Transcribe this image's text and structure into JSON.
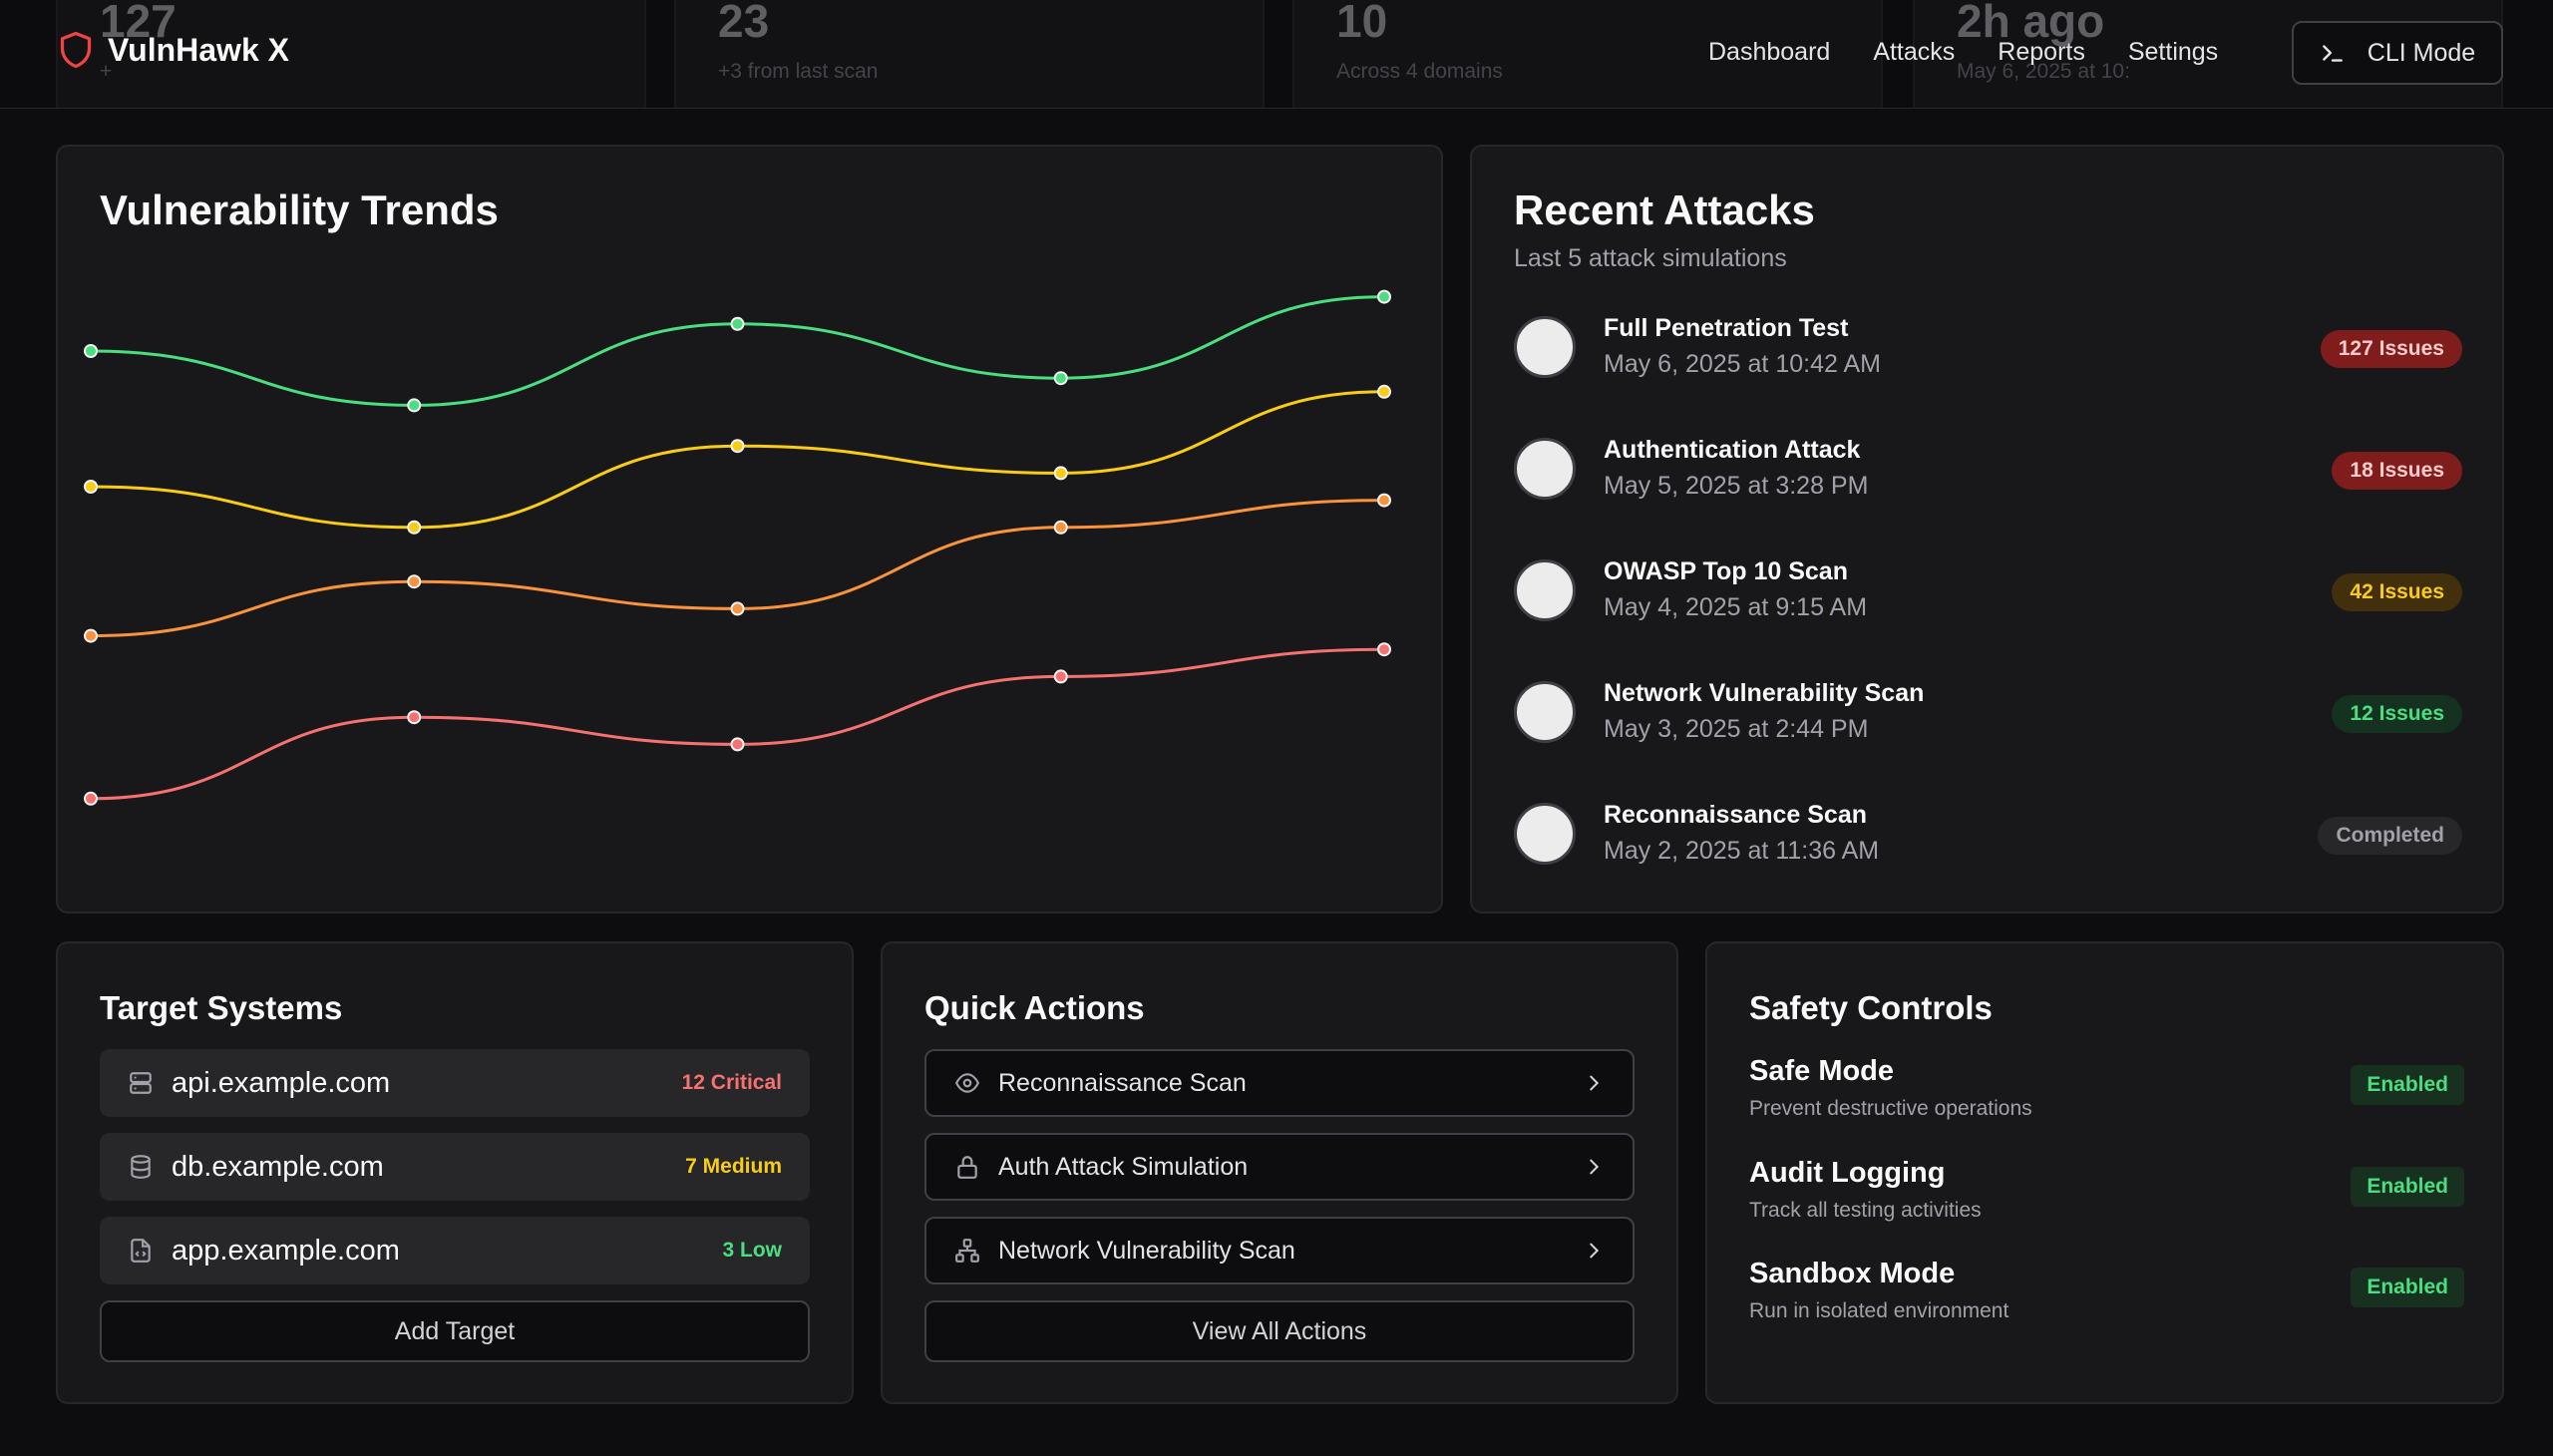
{
  "header": {
    "brand": "VulnHawk X",
    "nav": [
      "Dashboard",
      "Attacks",
      "Reports",
      "Settings"
    ],
    "cli_button": "CLI Mode",
    "behind_stats": [
      {
        "value": "127",
        "sub": "+"
      },
      {
        "value": "23",
        "sub": "+3 from last scan"
      },
      {
        "value": "10",
        "sub": "Across 4 domains"
      },
      {
        "value": "2h ago",
        "sub": "May 6, 2025 at 10:"
      }
    ]
  },
  "trends": {
    "title": "Vulnerability Trends"
  },
  "chart_data": {
    "type": "line",
    "title": "Vulnerability Trends",
    "x": [
      1,
      2,
      3,
      4,
      5
    ],
    "ylim": [
      0,
      100
    ],
    "grid": false,
    "legend": "none",
    "series": [
      {
        "color": "#4ade80",
        "values": [
          75,
          71,
          77,
          73,
          79
        ]
      },
      {
        "color": "#facc15",
        "values": [
          65,
          62,
          68,
          66,
          72
        ]
      },
      {
        "color": "#fb923c",
        "values": [
          54,
          58,
          56,
          62,
          64
        ]
      },
      {
        "color": "#f87171",
        "values": [
          42,
          48,
          46,
          51,
          53
        ]
      }
    ]
  },
  "recent_attacks": {
    "title": "Recent Attacks",
    "subtitle": "Last 5 attack simulations",
    "items": [
      {
        "name": "Full Penetration Test",
        "date": "May 6, 2025 at 10:42 AM",
        "badge": "127 Issues",
        "badge_bg": "#7f1d1d",
        "badge_fg": "#fecaca"
      },
      {
        "name": "Authentication Attack",
        "date": "May 5, 2025 at 3:28 PM",
        "badge": "18 Issues",
        "badge_bg": "#7f1d1d",
        "badge_fg": "#fecaca"
      },
      {
        "name": "OWASP Top 10 Scan",
        "date": "May 4, 2025 at 9:15 AM",
        "badge": "42 Issues",
        "badge_bg": "#422f0b",
        "badge_fg": "#facc15"
      },
      {
        "name": "Network Vulnerability Scan",
        "date": "May 3, 2025 at 2:44 PM",
        "badge": "12 Issues",
        "badge_bg": "#14321f",
        "badge_fg": "#4ade80"
      },
      {
        "name": "Reconnaissance Scan",
        "date": "May 2, 2025 at 11:36 AM",
        "badge": "Completed",
        "badge_bg": "#27272a",
        "badge_fg": "#a1a1aa"
      }
    ]
  },
  "targets": {
    "title": "Target Systems",
    "items": [
      {
        "icon": "server-icon",
        "name": "api.example.com",
        "severity": "12 Critical",
        "color": "#f87171"
      },
      {
        "icon": "database-icon",
        "name": "db.example.com",
        "severity": "7 Medium",
        "color": "#facc15"
      },
      {
        "icon": "file-code-icon",
        "name": "app.example.com",
        "severity": "3 Low",
        "color": "#4ade80"
      }
    ],
    "add_button": "Add Target"
  },
  "quick_actions": {
    "title": "Quick Actions",
    "items": [
      {
        "icon": "eye-icon",
        "label": "Reconnaissance Scan"
      },
      {
        "icon": "lock-icon",
        "label": "Auth Attack Simulation"
      },
      {
        "icon": "network-icon",
        "label": "Network Vulnerability Scan"
      }
    ],
    "view_all": "View All Actions"
  },
  "safety": {
    "title": "Safety Controls",
    "items": [
      {
        "title": "Safe Mode",
        "desc": "Prevent destructive operations",
        "status": "Enabled"
      },
      {
        "title": "Audit Logging",
        "desc": "Track all testing activities",
        "status": "Enabled"
      },
      {
        "title": "Sandbox Mode",
        "desc": "Run in isolated environment",
        "status": "Enabled"
      }
    ]
  }
}
